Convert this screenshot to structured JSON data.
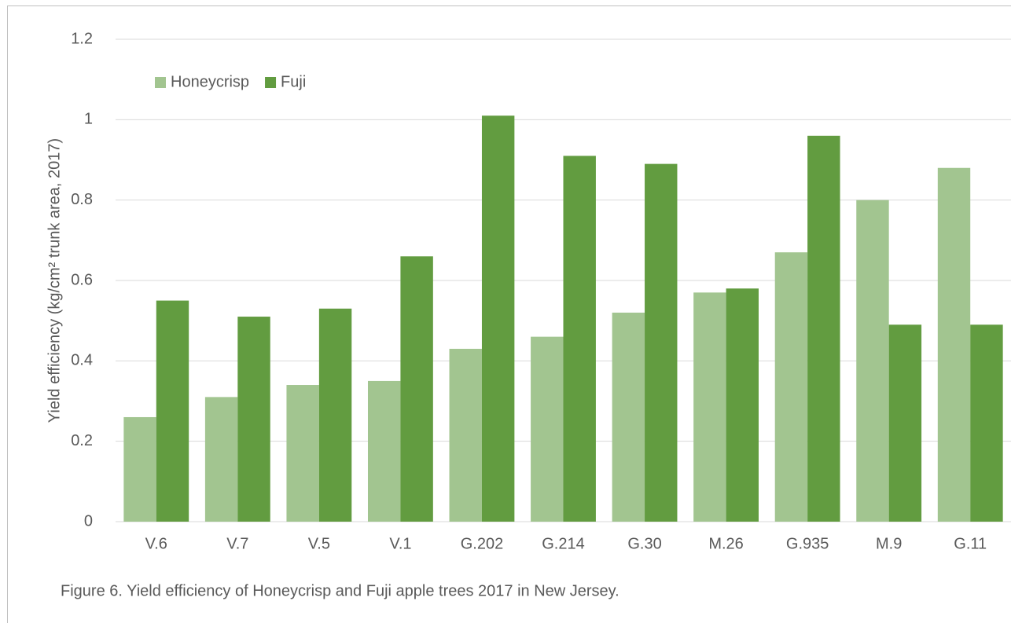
{
  "chart_data": {
    "type": "bar",
    "caption": "Figure 6.  Yield efficiency of Honeycrisp and Fuji apple trees 2017 in New Jersey.",
    "y_label": "Yield efficiency (kg/cm² trunk area, 2017)",
    "categories": [
      "V.6",
      "V.7",
      "V.5",
      "V.1",
      "G.202",
      "G.214",
      "G.30",
      "M.26",
      "G.935",
      "M.9",
      "G.11"
    ],
    "series": [
      {
        "name": "Honeycrisp",
        "color": "#a2c590",
        "values": [
          0.26,
          0.31,
          0.34,
          0.35,
          0.43,
          0.46,
          0.52,
          0.57,
          0.67,
          0.8,
          0.88
        ]
      },
      {
        "name": "Fuji",
        "color": "#629c40",
        "values": [
          0.55,
          0.51,
          0.53,
          0.66,
          1.01,
          0.91,
          0.89,
          0.58,
          0.96,
          0.49,
          0.49
        ]
      }
    ],
    "ylim": [
      0,
      1.2
    ],
    "yticks": [
      0,
      0.2,
      0.4,
      0.6,
      0.8,
      1,
      1.2
    ],
    "grid": true,
    "legend": "top-left"
  }
}
